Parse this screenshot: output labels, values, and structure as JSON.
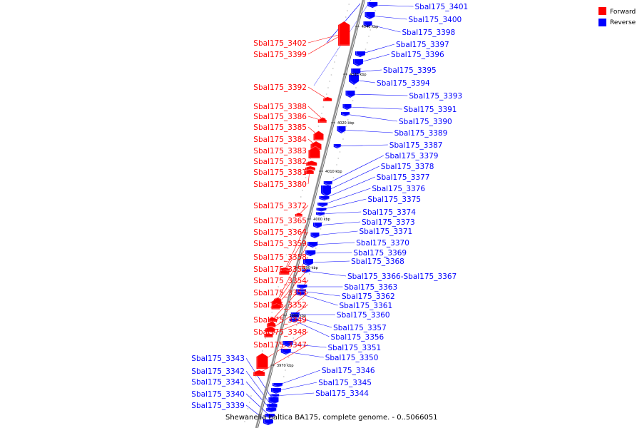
{
  "caption": "Shewanella baltica BA175, complete genome. - 0..5066051",
  "legend": [
    {
      "label": "Forward",
      "color": "#ff0000"
    },
    {
      "label": "Reverse",
      "color": "#0000ff"
    }
  ],
  "colors": {
    "forward": "#ff0000",
    "reverse": "#0000ff",
    "backbone": "#808080"
  },
  "ticks": [
    "4040 kbp",
    "4030 kbp",
    "4020 kbp",
    "4010 kbp",
    "4000 kbp",
    "3990 kbp",
    "3980 kbp",
    "3970 kbp"
  ],
  "forward_labels": [
    "Sbal175_3402",
    "Sbal175_3399",
    "Sbal175_3392",
    "Sbal175_3388",
    "Sbal175_3386",
    "Sbal175_3385",
    "Sbal175_3384",
    "Sbal175_3383",
    "Sbal175_3382",
    "Sbal175_3381",
    "Sbal175_3380",
    "Sbal175_3372",
    "Sbal175_3365",
    "Sbal175_3364",
    "Sbal175_3359",
    "Sbal175_3358",
    "Sbal175_3355",
    "Sbal175_3354",
    "Sbal175_3353",
    "Sbal175_3352",
    "Sbal175_3349",
    "Sbal175_3348",
    "Sbal175_3347"
  ],
  "reverse_labels": [
    "Sbal175_3401",
    "Sbal175_3400",
    "Sbal175_3398",
    "Sbal175_3397",
    "Sbal175_3396",
    "Sbal175_3395",
    "Sbal175_3394",
    "Sbal175_3393",
    "Sbal175_3391",
    "Sbal175_3390",
    "Sbal175_3389",
    "Sbal175_3387",
    "Sbal175_3379",
    "Sbal175_3378",
    "Sbal175_3377",
    "Sbal175_3376",
    "Sbal175_3375",
    "Sbal175_3374",
    "Sbal175_3373",
    "Sbal175_3371",
    "Sbal175_3370",
    "Sbal175_3369",
    "Sbal175_3368",
    "Sbal175_3366-Sbal175_3367",
    "Sbal175_3363",
    "Sbal175_3362",
    "Sbal175_3361",
    "Sbal175_3360",
    "Sbal175_3357",
    "Sbal175_3356",
    "Sbal175_3351",
    "Sbal175_3350",
    "Sbal175_3346",
    "Sbal175_3345",
    "Sbal175_3344",
    "Sbal175_3343",
    "Sbal175_3342",
    "Sbal175_3341",
    "Sbal175_3340",
    "Sbal175_3339"
  ]
}
